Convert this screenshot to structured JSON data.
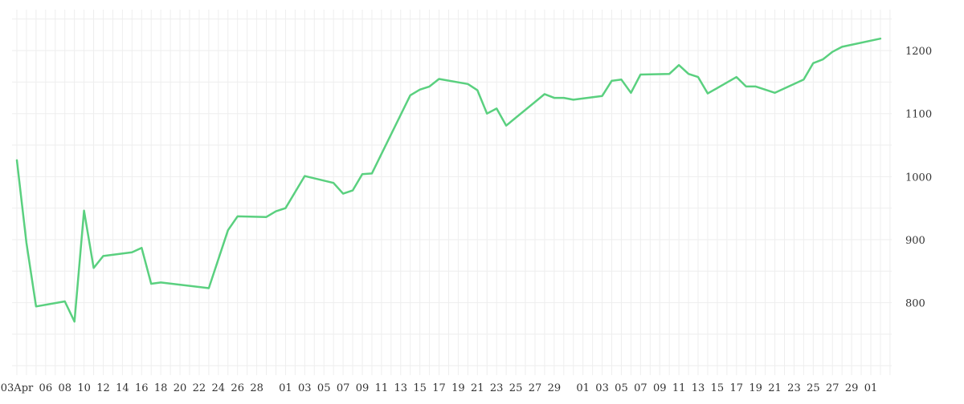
{
  "chart_data": {
    "type": "line",
    "title": "",
    "xlabel": "",
    "ylabel": "",
    "x": [
      "2019-04-03",
      "2019-04-04",
      "2019-04-05",
      "2019-04-08",
      "2019-04-09",
      "2019-04-10",
      "2019-04-11",
      "2019-04-12",
      "2019-04-15",
      "2019-04-16",
      "2019-04-17",
      "2019-04-18",
      "2019-04-23",
      "2019-04-25",
      "2019-04-26",
      "2019-04-29",
      "2019-04-30",
      "2019-05-01",
      "2019-05-03",
      "2019-05-06",
      "2019-05-07",
      "2019-05-08",
      "2019-05-09",
      "2019-05-10",
      "2019-05-14",
      "2019-05-15",
      "2019-05-16",
      "2019-05-17",
      "2019-05-20",
      "2019-05-21",
      "2019-05-22",
      "2019-05-23",
      "2019-05-24",
      "2019-05-28",
      "2019-05-29",
      "2019-05-30",
      "2019-05-31",
      "2019-06-03",
      "2019-06-04",
      "2019-06-05",
      "2019-06-06",
      "2019-06-07",
      "2019-06-10",
      "2019-06-11",
      "2019-06-12",
      "2019-06-13",
      "2019-06-14",
      "2019-06-17",
      "2019-06-18",
      "2019-06-19",
      "2019-06-21",
      "2019-06-24",
      "2019-06-25",
      "2019-06-26",
      "2019-06-27",
      "2019-06-28",
      "2019-07-02"
    ],
    "series": [
      {
        "color": "#5ad07f",
        "values": [
          1026,
          895,
          794,
          802,
          770,
          946,
          855,
          874,
          880,
          887,
          830,
          832,
          823,
          915,
          937,
          936,
          945,
          950,
          1001,
          990,
          973,
          978,
          1004,
          1005,
          1129,
          1138,
          1143,
          1155,
          1147,
          1137,
          1100,
          1108,
          1081,
          1131,
          1125,
          1125,
          1122,
          1128,
          1152,
          1154,
          1133,
          1162,
          1163,
          1177,
          1163,
          1158,
          1132,
          1158,
          1143,
          1143,
          1133,
          1154,
          1180,
          1186,
          1198,
          1206,
          1219
        ]
      }
    ],
    "ylim": [
      685,
      1265
    ],
    "y_ticks": [
      800,
      900,
      1000,
      1100,
      1200
    ],
    "y_tick_labels": [
      "800",
      "900",
      "1000",
      "1100",
      "1200"
    ],
    "x_ticks": [
      "2019-04-03",
      "2019-04-06",
      "2019-04-08",
      "2019-04-10",
      "2019-04-12",
      "2019-04-14",
      "2019-04-16",
      "2019-04-18",
      "2019-04-20",
      "2019-04-22",
      "2019-04-24",
      "2019-04-26",
      "2019-04-28",
      "2019-05-01",
      "2019-05-03",
      "2019-05-05",
      "2019-05-07",
      "2019-05-09",
      "2019-05-11",
      "2019-05-13",
      "2019-05-15",
      "2019-05-17",
      "2019-05-19",
      "2019-05-21",
      "2019-05-23",
      "2019-05-25",
      "2019-05-27",
      "2019-05-29",
      "2019-06-01",
      "2019-06-03",
      "2019-06-05",
      "2019-06-07",
      "2019-06-09",
      "2019-06-11",
      "2019-06-13",
      "2019-06-15",
      "2019-06-17",
      "2019-06-19",
      "2019-06-21",
      "2019-06-23",
      "2019-06-25",
      "2019-06-27",
      "2019-06-29",
      "2019-07-01"
    ],
    "x_tick_labels": [
      "03Apr",
      "06",
      "08",
      "10",
      "12",
      "14",
      "16",
      "18",
      "20",
      "22",
      "24",
      "26",
      "28",
      "01",
      "03",
      "05",
      "07",
      "09",
      "11",
      "13",
      "15",
      "17",
      "19",
      "21",
      "23",
      "25",
      "27",
      "29",
      "01",
      "03",
      "05",
      "07",
      "09",
      "11",
      "13",
      "15",
      "17",
      "19",
      "21",
      "23",
      "25",
      "27",
      "29",
      "01"
    ],
    "y_axis_position": "right",
    "grid": true,
    "legend": false
  }
}
